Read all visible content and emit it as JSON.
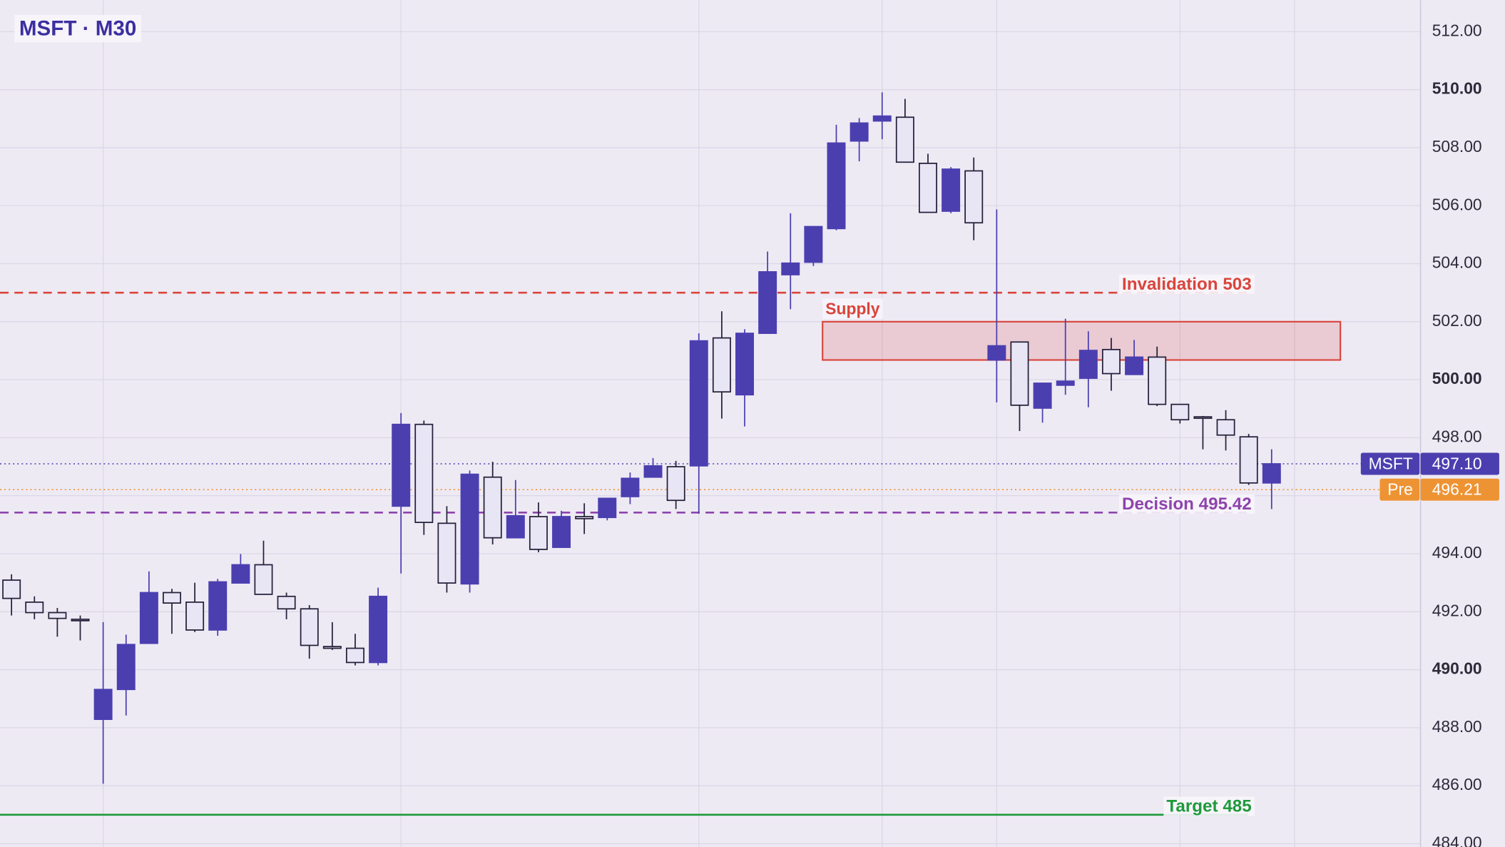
{
  "chart_data": {
    "type": "candlestick",
    "title": "MSFT · M30",
    "ylim": [
      483.89,
      513.09
    ],
    "yticks": [
      {
        "value": 484,
        "label": "484.00"
      },
      {
        "value": 486,
        "label": "486.00"
      },
      {
        "value": 488,
        "label": "488.00"
      },
      {
        "value": 490,
        "label": "490.00"
      },
      {
        "value": 492,
        "label": "492.00"
      },
      {
        "value": 494,
        "label": "494.00"
      },
      {
        "value": 496,
        "label": "496.00"
      },
      {
        "value": 498,
        "label": "498.00"
      },
      {
        "value": 500,
        "label": "500.00"
      },
      {
        "value": 502,
        "label": "502.00"
      },
      {
        "value": 504,
        "label": "504.00"
      },
      {
        "value": 506,
        "label": "506.00"
      },
      {
        "value": 508,
        "label": "508.00"
      },
      {
        "value": 510,
        "label": "510.00"
      },
      {
        "value": 512,
        "label": "512.00"
      }
    ],
    "xticks": [
      4,
      17,
      30,
      38,
      43,
      51,
      56
    ],
    "grid": true,
    "series": [
      {
        "name": "MSFT",
        "up_color": "#4b3fb0",
        "down_color": "#e8e5f5",
        "open": [
          493.09,
          492.33,
          491.97,
          491.74,
          488.29,
          489.32,
          490.91,
          492.66,
          492.33,
          491.37,
          492.99,
          493.62,
          492.53,
          492.1,
          490.8,
          490.74,
          490.25,
          495.64,
          498.46,
          495.05,
          492.96,
          496.64,
          494.55,
          495.28,
          494.22,
          495.28,
          495.25,
          495.97,
          496.64,
          497.0,
          497.03,
          501.44,
          499.48,
          501.6,
          503.62,
          504.05,
          505.21,
          508.23,
          508.92,
          509.05,
          507.46,
          505.81,
          507.2,
          500.68,
          501.3,
          499.02,
          499.81,
          500.05,
          501.04,
          500.18,
          500.78,
          499.15,
          498.72,
          498.62,
          498.03,
          496.44
        ],
        "high": [
          493.29,
          492.53,
          492.13,
          491.87,
          491.64,
          491.21,
          493.39,
          492.79,
          493.0,
          493.13,
          493.99,
          494.45,
          492.66,
          492.23,
          491.64,
          491.24,
          492.83,
          498.85,
          498.59,
          495.64,
          496.87,
          497.17,
          496.54,
          495.77,
          495.48,
          495.74,
          495.91,
          496.8,
          497.3,
          497.2,
          501.6,
          502.36,
          501.74,
          504.42,
          505.74,
          505.28,
          508.79,
          509.02,
          509.91,
          509.68,
          507.79,
          507.33,
          507.66,
          505.87,
          501.3,
          499.88,
          502.1,
          501.67,
          501.44,
          501.37,
          501.14,
          499.15,
          498.75,
          498.95,
          498.13,
          497.6
        ],
        "low": [
          491.87,
          491.74,
          491.14,
          491.01,
          486.07,
          488.42,
          490.91,
          491.24,
          491.3,
          491.17,
          492.99,
          492.6,
          491.74,
          490.38,
          490.68,
          490.15,
          490.15,
          493.32,
          494.65,
          492.66,
          492.66,
          494.32,
          494.55,
          494.05,
          494.22,
          494.68,
          495.15,
          495.71,
          496.64,
          495.54,
          495.38,
          498.66,
          498.39,
          501.6,
          502.43,
          503.92,
          505.15,
          507.53,
          508.29,
          507.5,
          505.77,
          505.74,
          504.81,
          499.22,
          498.23,
          498.52,
          499.48,
          499.05,
          499.62,
          500.18,
          499.09,
          498.49,
          497.6,
          497.56,
          496.37,
          495.54
        ],
        "close": [
          492.46,
          491.97,
          491.77,
          491.71,
          489.32,
          490.87,
          492.66,
          492.3,
          491.37,
          493.03,
          493.62,
          492.6,
          492.1,
          490.84,
          490.74,
          490.25,
          492.53,
          498.46,
          495.08,
          492.99,
          496.74,
          494.55,
          495.31,
          494.15,
          495.28,
          495.21,
          495.91,
          496.6,
          497.03,
          495.84,
          501.34,
          499.58,
          501.6,
          503.72,
          504.02,
          505.28,
          508.16,
          508.85,
          509.09,
          507.5,
          505.77,
          507.26,
          505.41,
          501.17,
          499.12,
          499.88,
          499.95,
          501.01,
          500.21,
          500.78,
          499.15,
          498.62,
          498.69,
          498.09,
          496.44,
          497.1
        ]
      }
    ],
    "price_lines": [
      {
        "name": "MSFT",
        "value": 497.1,
        "value_label": "497.10",
        "color": "#4b3fb0"
      },
      {
        "name": "Pre",
        "value": 496.21,
        "color": "#ee9334"
      }
    ],
    "levels": [
      {
        "label": "Invalidation 503",
        "value": 503,
        "color": "#d9453b",
        "style": "dashed"
      },
      {
        "label": "Decision 495.42",
        "value": 495.42,
        "color": "#8e44ad",
        "style": "dashed"
      },
      {
        "label": "Target 485",
        "value": 485,
        "color": "#1e9a3b",
        "style": "solid"
      }
    ],
    "zone": {
      "label": "Supply",
      "top": 502,
      "bottom": 500.68,
      "x_range": [
        35.4,
        58.0
      ],
      "color": "#d9453b"
    }
  }
}
